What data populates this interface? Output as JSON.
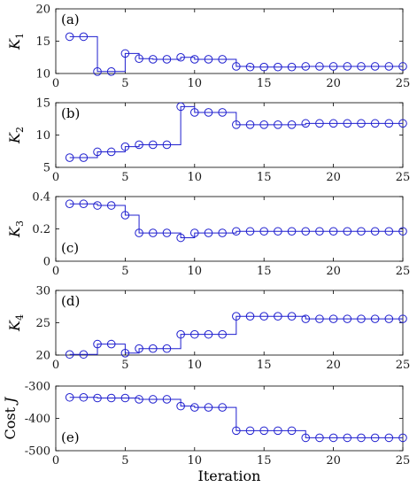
{
  "chart_data": {
    "type": "line",
    "xlabel": "Iteration",
    "x": [
      1,
      2,
      3,
      4,
      5,
      6,
      7,
      8,
      9,
      10,
      11,
      12,
      13,
      14,
      15,
      16,
      17,
      18,
      19,
      20,
      21,
      22,
      23,
      24,
      25
    ],
    "xlim": [
      0,
      25
    ],
    "xticks": [
      0,
      5,
      10,
      15,
      20,
      25
    ],
    "line_style": "step-post",
    "marker": "open-circle",
    "color": "#1f1fcf",
    "grid": false,
    "panels": [
      {
        "panel_label": "(a)",
        "ylabel_main": "K",
        "ylabel_sub": "1",
        "ylim": [
          10,
          20
        ],
        "yticks": [
          10,
          15,
          20
        ],
        "values": [
          15.7,
          15.7,
          10.3,
          10.3,
          13.1,
          12.3,
          12.2,
          12.2,
          12.5,
          12.2,
          12.2,
          12.2,
          11.1,
          11.0,
          11.0,
          11.0,
          11.0,
          11.1,
          11.1,
          11.1,
          11.1,
          11.1,
          11.1,
          11.1,
          11.1
        ]
      },
      {
        "panel_label": "(b)",
        "ylabel_main": "K",
        "ylabel_sub": "2",
        "ylim": [
          5,
          15
        ],
        "yticks": [
          5,
          10,
          15
        ],
        "values": [
          6.5,
          6.5,
          7.4,
          7.4,
          8.2,
          8.5,
          8.5,
          8.5,
          14.4,
          13.5,
          13.5,
          13.5,
          11.6,
          11.6,
          11.6,
          11.6,
          11.6,
          11.8,
          11.8,
          11.8,
          11.8,
          11.8,
          11.8,
          11.8,
          11.8
        ]
      },
      {
        "panel_label": "(c)",
        "ylabel_main": "K",
        "ylabel_sub": "3",
        "ylim": [
          0,
          0.4
        ],
        "yticks": [
          0,
          0.2,
          0.4
        ],
        "values": [
          0.355,
          0.355,
          0.345,
          0.345,
          0.285,
          0.175,
          0.175,
          0.175,
          0.145,
          0.175,
          0.175,
          0.175,
          0.185,
          0.185,
          0.185,
          0.185,
          0.185,
          0.185,
          0.185,
          0.185,
          0.185,
          0.185,
          0.185,
          0.185,
          0.185
        ]
      },
      {
        "panel_label": "(d)",
        "ylabel_main": "K",
        "ylabel_sub": "4",
        "ylim": [
          20,
          30
        ],
        "yticks": [
          20,
          25,
          30
        ],
        "values": [
          20.1,
          20.1,
          21.7,
          21.7,
          20.3,
          21.0,
          21.0,
          21.0,
          23.2,
          23.2,
          23.2,
          23.2,
          26.0,
          26.0,
          26.0,
          26.0,
          26.0,
          25.6,
          25.6,
          25.6,
          25.6,
          25.6,
          25.6,
          25.6,
          25.6
        ]
      },
      {
        "panel_label": "(e)",
        "ylabel_main": "Cost",
        "ylabel_sub": "J",
        "ylim": [
          -500,
          -300
        ],
        "yticks": [
          -500,
          -400,
          -300
        ],
        "values": [
          -335,
          -335,
          -337,
          -337,
          -337,
          -341,
          -341,
          -341,
          -362,
          -366,
          -366,
          -366,
          -438,
          -438,
          -438,
          -438,
          -438,
          -460,
          -460,
          -460,
          -460,
          -460,
          -460,
          -460,
          -460
        ]
      }
    ]
  }
}
